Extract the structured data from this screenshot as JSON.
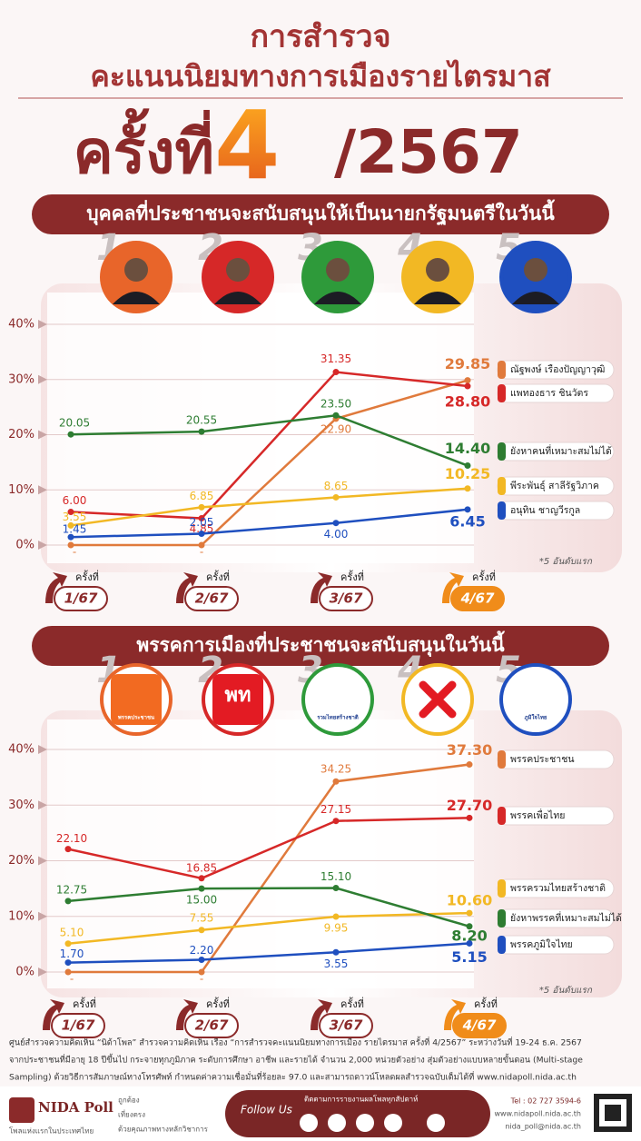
{
  "header": {
    "line1": "การสำรวจ",
    "line2": "คะแนนนิยมทางการเมืองรายไตรมาส",
    "round_word": "ครั้งที่",
    "round_number": "4",
    "round_year": "/2567"
  },
  "chart_data": [
    {
      "type": "line",
      "title": "บุคคลที่ประชาชนจะสนับสนุนให้เป็นนายกรัฐมนตรีในวันนี้",
      "rank_labels": [
        "1",
        "2",
        "3",
        "4",
        "5"
      ],
      "round_prefix": "ครั้งที่",
      "categories": [
        "1/67",
        "2/67",
        "3/67",
        "4/67"
      ],
      "ylim": [
        0,
        40
      ],
      "yticks": [
        {
          "value": 0,
          "label": "0%"
        },
        {
          "value": 10,
          "label": "10%"
        },
        {
          "value": 20,
          "label": "20%"
        },
        {
          "value": 30,
          "label": "30%"
        },
        {
          "value": 40,
          "label": "40%"
        }
      ],
      "grid": true,
      "note": "*5 อันดับแรก",
      "series": [
        {
          "name": "ณัฐพงษ์ เรืองปัญญาวุฒิ",
          "color": "#e07a3c",
          "values": [
            0,
            0,
            22.9,
            29.85
          ],
          "value_labels": [
            "-",
            "-",
            "22.90",
            "29.85"
          ]
        },
        {
          "name": "แพทองธาร ชินวัตร",
          "color": "#d62828",
          "values": [
            6.0,
            4.85,
            31.35,
            28.8
          ],
          "value_labels": [
            "6.00",
            "4.85",
            "31.35",
            "28.80"
          ]
        },
        {
          "name": "ยังหาคนที่เหมาะสมไม่ได้",
          "color": "#2e7d32",
          "values": [
            20.05,
            20.55,
            23.5,
            14.4
          ],
          "value_labels": [
            "20.05",
            "20.55",
            "23.50",
            "14.40"
          ]
        },
        {
          "name": "พีระพันธุ์ สาลีรัฐวิภาค",
          "color": "#f2b824",
          "values": [
            3.55,
            6.85,
            8.65,
            10.25
          ],
          "value_labels": [
            "3.55",
            "6.85",
            "8.65",
            "10.25"
          ]
        },
        {
          "name": "อนุทิน ชาญวีรกูล",
          "color": "#1f4fbf",
          "values": [
            1.45,
            2.05,
            4.0,
            6.45
          ],
          "value_labels": [
            "1.45",
            "2.05",
            "4.00",
            "6.45"
          ]
        }
      ]
    },
    {
      "type": "line",
      "title": "พรรคการเมืองที่ประชาชนจะสนับสนุนในวันนี้",
      "rank_labels": [
        "1",
        "2",
        "3",
        "4",
        "5"
      ],
      "logo_texts": [
        "พรรคประชาชน",
        "พท",
        "รวมไทยสร้างชาติ",
        "ภูมิใจไทย"
      ],
      "round_prefix": "ครั้งที่",
      "categories": [
        "1/67",
        "2/67",
        "3/67",
        "4/67"
      ],
      "ylim": [
        0,
        40
      ],
      "yticks": [
        {
          "value": 0,
          "label": "0%"
        },
        {
          "value": 10,
          "label": "10%"
        },
        {
          "value": 20,
          "label": "20%"
        },
        {
          "value": 30,
          "label": "30%"
        },
        {
          "value": 40,
          "label": "40%"
        }
      ],
      "grid": true,
      "note": "*5 อันดับแรก",
      "series": [
        {
          "name": "พรรคประชาชน",
          "color": "#e07a3c",
          "values": [
            0,
            0,
            34.25,
            37.3
          ],
          "value_labels": [
            "-",
            "-",
            "34.25",
            "37.30"
          ]
        },
        {
          "name": "พรรคเพื่อไทย",
          "color": "#d62828",
          "values": [
            22.1,
            16.85,
            27.15,
            27.7
          ],
          "value_labels": [
            "22.10",
            "16.85",
            "27.15",
            "27.70"
          ]
        },
        {
          "name": "พรรครวมไทยสร้างชาติ",
          "color": "#f2b824",
          "values": [
            5.1,
            7.55,
            9.95,
            10.6
          ],
          "value_labels": [
            "5.10",
            "7.55",
            "9.95",
            "10.60"
          ]
        },
        {
          "name": "ยังหาพรรคที่เหมาะสมไม่ได้",
          "color": "#2e7d32",
          "values": [
            12.75,
            15.0,
            15.1,
            8.2
          ],
          "value_labels": [
            "12.75",
            "15.00",
            "15.10",
            "8.20"
          ]
        },
        {
          "name": "พรรคภูมิใจไทย",
          "color": "#1f4fbf",
          "values": [
            1.7,
            2.2,
            3.55,
            5.15
          ],
          "value_labels": [
            "1.70",
            "2.20",
            "3.55",
            "5.15"
          ]
        }
      ]
    }
  ],
  "footer": {
    "note_lines": [
      "ศูนย์สำรวจความคิดเห็น “นิด้าโพล” สำรวจความคิดเห็น เรื่อง “การสำรวจคะแนนนิยมทางการเมือง รายไตรมาส ครั้งที่ 4/2567” ระหว่างวันที่ 19-24 ธ.ค. 2567",
      "จากประชาชนที่มีอายุ 18 ปีขึ้นไป กระจายทุกภูมิภาค ระดับการศึกษา อาชีพ และรายได้ จำนวน 2,000 หน่วยตัวอย่าง สุ่มตัวอย่างแบบหลายขั้นตอน (Multi-stage",
      "Sampling) ด้วยวิธีการสัมภาษณ์ทางโทรศัพท์ กำหนดค่าความเชื่อมั่นที่ร้อยละ 97.0 และสามารถดาวน์โหลดผลสำรวจฉบับเต็มได้ที่ www.nidapoll.nida.ac.th"
    ],
    "brand": "NIDA Poll",
    "brand_tagline": "โพลแห่งแรกในประเทศไทย",
    "values": [
      "ถูกต้อง",
      "เที่ยงตรง",
      "ด้วยคุณภาพทางหลักวิชาการ"
    ],
    "follow": "Follow Us",
    "follow_note": "ติดตามการรายงานผลโพลทุกสัปดาห์",
    "tel": "Tel : 02 727 3594-6",
    "web": "www.nidapoll.nida.ac.th",
    "email": "nida_poll@nida.ac.th"
  }
}
